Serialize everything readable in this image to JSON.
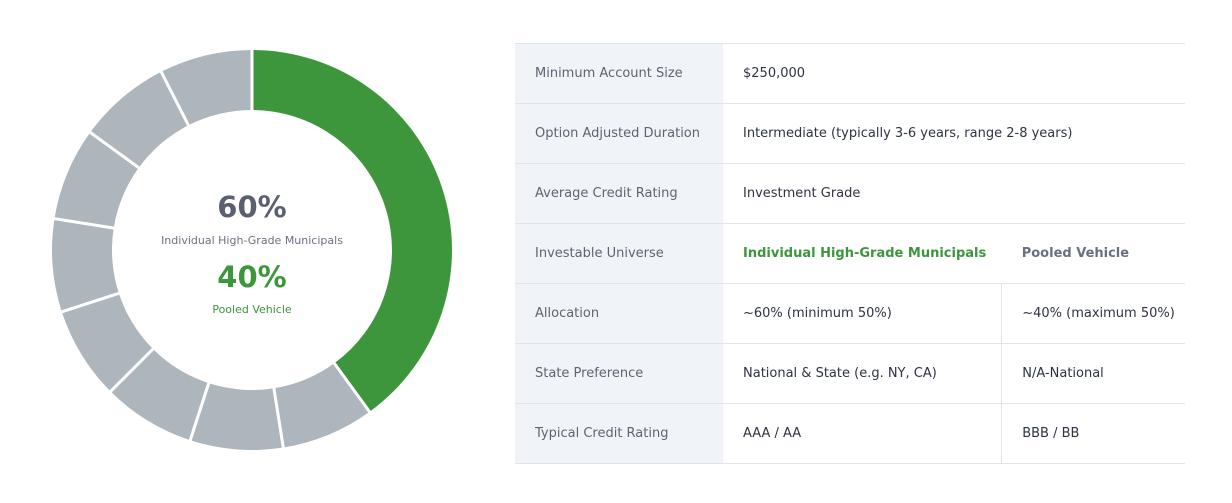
{
  "chart_data": {
    "type": "donut",
    "categories": [
      "Individual High-Grade Municipals",
      "Pooled Vehicle"
    ],
    "values": [
      60,
      40
    ],
    "value_labels": [
      "60%",
      "40%"
    ],
    "colors": [
      "#aeb6bd",
      "#3d963c"
    ]
  },
  "table": {
    "rows": [
      {
        "label": "Minimum Account Size",
        "cells": [
          "$250,000"
        ]
      },
      {
        "label": "Option Adjusted Duration",
        "cells": [
          "Intermediate (typically 3-6 years, range 2-8 years)"
        ]
      },
      {
        "label": "Average Credit Rating",
        "cells": [
          "Investment Grade"
        ]
      },
      {
        "label": "Investable Universe",
        "cells": [
          "Individual High-Grade Municipals",
          "Pooled Vehicle"
        ]
      },
      {
        "label": "Allocation",
        "cells": [
          "~60% (minimum 50%)",
          "~40% (maximum 50%)"
        ]
      },
      {
        "label": "State Preference",
        "cells": [
          "National & State (e.g. NY, CA)",
          "N/A-National"
        ]
      },
      {
        "label": "Typical Credit Rating",
        "cells": [
          "AAA / AA",
          "BBB / BB"
        ]
      }
    ]
  }
}
